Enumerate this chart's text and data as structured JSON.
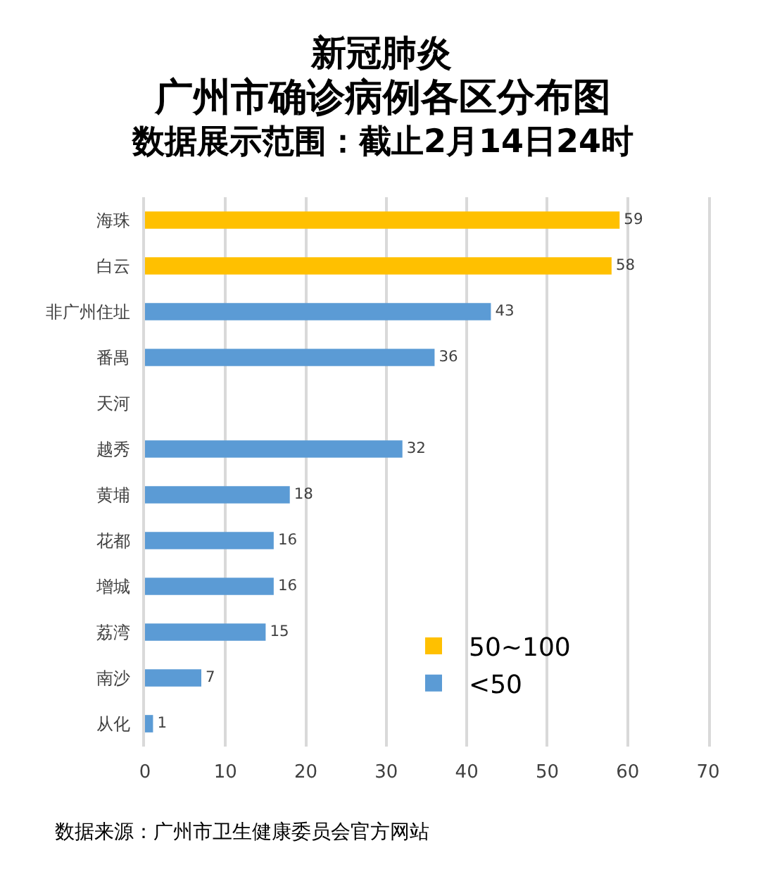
{
  "chart_data": {
    "type": "bar",
    "orientation": "horizontal",
    "title": "新冠肺炎",
    "subtitle": "广州市确诊病例各区分布图",
    "categories": [
      "海珠",
      "白云",
      "非广州住址",
      "番禺",
      "天河",
      "越秀",
      "黄埔",
      "花都",
      "增城",
      "荔湾",
      "南沙",
      "从化"
    ],
    "series": [
      {
        "name": "50~100",
        "color": "#ffc000",
        "values": [
          59,
          58,
          null,
          null,
          null,
          null,
          null,
          null,
          null,
          null,
          null,
          null
        ]
      },
      {
        "name": "<50",
        "color": "#5b9bd5",
        "values": [
          null,
          null,
          43,
          36,
          null,
          32,
          18,
          16,
          16,
          15,
          7,
          1
        ]
      }
    ],
    "xlim": [
      0,
      70
    ],
    "xticks": [
      0,
      10,
      20,
      30,
      40,
      50,
      60,
      70
    ],
    "grid": "x",
    "legend": "bottom right",
    "data_labels": true,
    "annotations": [
      "数据展示范围：截止2月14日24时",
      "数据来源：广州市卫生健康委员会官方网站"
    ]
  }
}
